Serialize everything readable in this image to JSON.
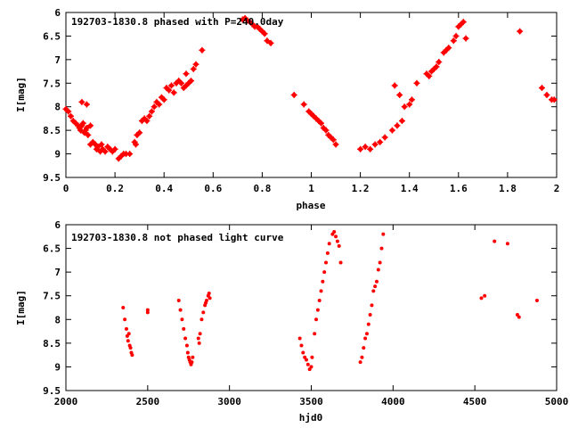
{
  "colors": {
    "points": "#ff0000",
    "axis": "#000000",
    "background": "#ffffff"
  },
  "chart_data": [
    {
      "type": "scatter",
      "title": "192703-1830.8 phased with P=240.0day",
      "xlabel": "phase",
      "ylabel": "I[mag]",
      "xlim": [
        0,
        2
      ],
      "ylim": [
        9.5,
        6
      ],
      "y_inverted": true,
      "grid": false,
      "xticks": [
        0,
        0.2,
        0.4,
        0.6,
        0.8,
        1,
        1.2,
        1.4,
        1.6,
        1.8,
        2
      ],
      "xtick_labels": [
        "0",
        "0.2",
        "0.4",
        "0.6",
        "0.8",
        "1",
        "1.2",
        "1.4",
        "1.6",
        "1.8",
        "2"
      ],
      "yticks": [
        6,
        6.5,
        7,
        7.5,
        8,
        8.5,
        9,
        9.5
      ],
      "ytick_labels": [
        "6",
        "6.5",
        "7",
        "7.5",
        "8",
        "8.5",
        "9",
        "9.5"
      ],
      "points": [
        [
          0.0,
          8.05
        ],
        [
          0.01,
          8.1
        ],
        [
          0.02,
          8.2
        ],
        [
          0.03,
          8.3
        ],
        [
          0.04,
          8.35
        ],
        [
          0.05,
          8.4
        ],
        [
          0.055,
          8.45
        ],
        [
          0.06,
          8.5
        ],
        [
          0.065,
          8.4
        ],
        [
          0.07,
          8.35
        ],
        [
          0.075,
          8.55
        ],
        [
          0.08,
          8.5
        ],
        [
          0.085,
          8.45
        ],
        [
          0.09,
          8.6
        ],
        [
          0.1,
          8.4
        ],
        [
          0.065,
          7.9
        ],
        [
          0.085,
          7.95
        ],
        [
          0.1,
          8.8
        ],
        [
          0.11,
          8.75
        ],
        [
          0.12,
          8.8
        ],
        [
          0.125,
          8.9
        ],
        [
          0.13,
          8.85
        ],
        [
          0.14,
          8.95
        ],
        [
          0.145,
          8.8
        ],
        [
          0.15,
          8.9
        ],
        [
          0.16,
          8.95
        ],
        [
          0.17,
          8.85
        ],
        [
          0.18,
          8.9
        ],
        [
          0.19,
          8.95
        ],
        [
          0.2,
          8.9
        ],
        [
          0.215,
          9.1
        ],
        [
          0.225,
          9.05
        ],
        [
          0.235,
          9.0
        ],
        [
          0.245,
          9.0
        ],
        [
          0.26,
          9.0
        ],
        [
          0.28,
          8.75
        ],
        [
          0.285,
          8.8
        ],
        [
          0.29,
          8.6
        ],
        [
          0.3,
          8.55
        ],
        [
          0.31,
          8.3
        ],
        [
          0.32,
          8.25
        ],
        [
          0.33,
          8.3
        ],
        [
          0.34,
          8.2
        ],
        [
          0.35,
          8.1
        ],
        [
          0.36,
          8.0
        ],
        [
          0.37,
          7.9
        ],
        [
          0.38,
          7.95
        ],
        [
          0.39,
          7.8
        ],
        [
          0.4,
          7.85
        ],
        [
          0.41,
          7.6
        ],
        [
          0.42,
          7.65
        ],
        [
          0.43,
          7.55
        ],
        [
          0.44,
          7.7
        ],
        [
          0.45,
          7.5
        ],
        [
          0.46,
          7.45
        ],
        [
          0.47,
          7.5
        ],
        [
          0.48,
          7.6
        ],
        [
          0.49,
          7.55
        ],
        [
          0.5,
          7.5
        ],
        [
          0.51,
          7.45
        ],
        [
          0.52,
          7.2
        ],
        [
          0.555,
          6.8
        ],
        [
          0.49,
          7.3
        ],
        [
          0.53,
          7.1
        ],
        [
          0.72,
          6.15
        ],
        [
          0.73,
          6.12
        ],
        [
          0.74,
          6.17
        ],
        [
          0.75,
          6.2
        ],
        [
          0.76,
          6.25
        ],
        [
          0.77,
          6.3
        ],
        [
          0.78,
          6.3
        ],
        [
          0.79,
          6.35
        ],
        [
          0.8,
          6.4
        ],
        [
          0.81,
          6.45
        ],
        [
          0.82,
          6.6
        ],
        [
          0.835,
          6.65
        ],
        [
          0.93,
          7.75
        ],
        [
          0.97,
          7.95
        ],
        [
          0.99,
          8.1
        ],
        [
          1.0,
          8.15
        ],
        [
          1.01,
          8.2
        ],
        [
          1.02,
          8.25
        ],
        [
          1.03,
          8.3
        ],
        [
          1.04,
          8.35
        ],
        [
          1.05,
          8.45
        ],
        [
          1.06,
          8.5
        ],
        [
          1.07,
          8.6
        ],
        [
          1.08,
          8.65
        ],
        [
          1.09,
          8.7
        ],
        [
          1.1,
          8.8
        ],
        [
          1.2,
          8.9
        ],
        [
          1.22,
          8.85
        ],
        [
          1.24,
          8.9
        ],
        [
          1.26,
          8.8
        ],
        [
          1.28,
          8.75
        ],
        [
          1.3,
          8.65
        ],
        [
          1.33,
          8.5
        ],
        [
          1.35,
          8.4
        ],
        [
          1.37,
          8.3
        ],
        [
          1.38,
          8.0
        ],
        [
          1.4,
          7.95
        ],
        [
          1.41,
          7.85
        ],
        [
          1.34,
          7.55
        ],
        [
          1.36,
          7.75
        ],
        [
          1.43,
          7.5
        ],
        [
          1.47,
          7.3
        ],
        [
          1.48,
          7.35
        ],
        [
          1.49,
          7.25
        ],
        [
          1.5,
          7.2
        ],
        [
          1.51,
          7.15
        ],
        [
          1.52,
          7.05
        ],
        [
          1.54,
          6.85
        ],
        [
          1.55,
          6.8
        ],
        [
          1.56,
          6.75
        ],
        [
          1.58,
          6.6
        ],
        [
          1.59,
          6.5
        ],
        [
          1.6,
          6.3
        ],
        [
          1.61,
          6.25
        ],
        [
          1.62,
          6.2
        ],
        [
          1.63,
          6.55
        ],
        [
          1.85,
          6.4
        ],
        [
          1.94,
          7.6
        ],
        [
          1.96,
          7.75
        ],
        [
          1.98,
          7.85
        ],
        [
          1.99,
          7.85
        ]
      ]
    },
    {
      "type": "scatter",
      "title": "192703-1830.8 not phased light curve",
      "xlabel": "hjd0",
      "ylabel": "I[mag]",
      "xlim": [
        2000,
        5000
      ],
      "ylim": [
        9.5,
        6
      ],
      "y_inverted": true,
      "grid": false,
      "xticks": [
        2000,
        2500,
        3000,
        3500,
        4000,
        4500,
        5000
      ],
      "xtick_labels": [
        "2000",
        "2500",
        "3000",
        "3500",
        "4000",
        "4500",
        "5000"
      ],
      "yticks": [
        6,
        6.5,
        7,
        7.5,
        8,
        8.5,
        9,
        9.5
      ],
      "ytick_labels": [
        "6",
        "6.5",
        "7",
        "7.5",
        "8",
        "8.5",
        "9",
        "9.5"
      ],
      "points": [
        [
          2350,
          7.75
        ],
        [
          2360,
          8.0
        ],
        [
          2370,
          8.2
        ],
        [
          2375,
          8.35
        ],
        [
          2380,
          8.45
        ],
        [
          2390,
          8.55
        ],
        [
          2395,
          8.6
        ],
        [
          2400,
          8.7
        ],
        [
          2405,
          8.75
        ],
        [
          2385,
          8.3
        ],
        [
          2500,
          7.8
        ],
        [
          2500,
          7.85
        ],
        [
          2690,
          7.6
        ],
        [
          2700,
          7.8
        ],
        [
          2710,
          8.0
        ],
        [
          2720,
          8.2
        ],
        [
          2730,
          8.4
        ],
        [
          2740,
          8.55
        ],
        [
          2745,
          8.7
        ],
        [
          2750,
          8.8
        ],
        [
          2755,
          8.85
        ],
        [
          2760,
          8.9
        ],
        [
          2765,
          8.95
        ],
        [
          2770,
          8.9
        ],
        [
          2775,
          8.8
        ],
        [
          2810,
          8.4
        ],
        [
          2815,
          8.5
        ],
        [
          2820,
          8.3
        ],
        [
          2830,
          8.0
        ],
        [
          2840,
          7.85
        ],
        [
          2850,
          7.7
        ],
        [
          2855,
          7.65
        ],
        [
          2860,
          7.6
        ],
        [
          2870,
          7.5
        ],
        [
          2875,
          7.45
        ],
        [
          2880,
          7.55
        ],
        [
          3430,
          8.4
        ],
        [
          3440,
          8.55
        ],
        [
          3450,
          8.7
        ],
        [
          3460,
          8.8
        ],
        [
          3470,
          8.85
        ],
        [
          3480,
          8.95
        ],
        [
          3490,
          9.05
        ],
        [
          3500,
          9.0
        ],
        [
          3505,
          8.8
        ],
        [
          3520,
          8.3
        ],
        [
          3530,
          8.0
        ],
        [
          3540,
          7.8
        ],
        [
          3550,
          7.6
        ],
        [
          3560,
          7.4
        ],
        [
          3570,
          7.2
        ],
        [
          3580,
          7.0
        ],
        [
          3590,
          6.8
        ],
        [
          3600,
          6.6
        ],
        [
          3610,
          6.4
        ],
        [
          3630,
          6.2
        ],
        [
          3640,
          6.15
        ],
        [
          3650,
          6.25
        ],
        [
          3660,
          6.35
        ],
        [
          3670,
          6.45
        ],
        [
          3680,
          6.8
        ],
        [
          3800,
          8.9
        ],
        [
          3810,
          8.8
        ],
        [
          3820,
          8.6
        ],
        [
          3830,
          8.4
        ],
        [
          3840,
          8.3
        ],
        [
          3850,
          8.1
        ],
        [
          3860,
          7.9
        ],
        [
          3870,
          7.7
        ],
        [
          3880,
          7.4
        ],
        [
          3890,
          7.3
        ],
        [
          3900,
          7.2
        ],
        [
          3910,
          6.95
        ],
        [
          3920,
          6.8
        ],
        [
          3930,
          6.5
        ],
        [
          3940,
          6.2
        ],
        [
          4540,
          7.55
        ],
        [
          4560,
          7.5
        ],
        [
          4620,
          6.35
        ],
        [
          4700,
          6.4
        ],
        [
          4760,
          7.9
        ],
        [
          4770,
          7.95
        ],
        [
          4880,
          7.6
        ]
      ]
    }
  ]
}
